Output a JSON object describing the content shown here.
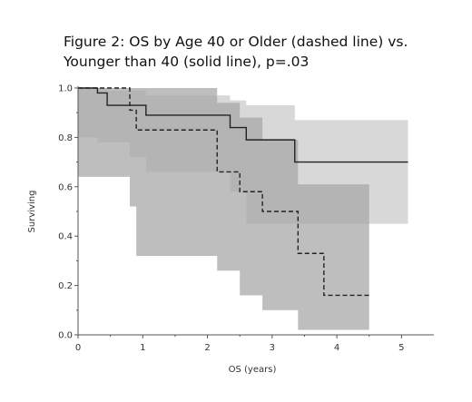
{
  "title": {
    "line1": "Figure 2: OS by Age 40 or Older (dashed line) vs.",
    "line2": "Younger than 40 (solid line), p=.03"
  },
  "chart_data": {
    "type": "line",
    "step": true,
    "xlabel": "OS (years)",
    "ylabel": "Surviving",
    "xlim": [
      0,
      5.5
    ],
    "ylim": [
      0,
      1.0
    ],
    "x_ticks": [
      0,
      1,
      2,
      3,
      4,
      5
    ],
    "y_ticks": [
      0.0,
      0.2,
      0.4,
      0.6,
      0.8,
      1.0
    ],
    "y_tick_labels": [
      "0.0",
      "0.2",
      "0.4",
      "0.6",
      "0.8",
      "1.0"
    ],
    "grid": false,
    "series": [
      {
        "style": "solid",
        "color": "#222222",
        "x": [
          0,
          0.3,
          0.45,
          0.8,
          1.05,
          2.35,
          2.6,
          3.35,
          5.1
        ],
        "y": [
          1.0,
          0.98,
          0.93,
          0.93,
          0.89,
          0.84,
          0.79,
          0.7,
          0.7
        ],
        "ci_lower": [
          0.9,
          0.8,
          0.78,
          0.78,
          0.72,
          0.66,
          0.58,
          0.45,
          0.45
        ],
        "ci_upper": [
          1.0,
          1.0,
          0.99,
          0.99,
          0.97,
          0.95,
          0.93,
          0.87,
          0.87
        ],
        "ci_color": "#d8d8d8"
      },
      {
        "style": "dashed",
        "color": "#222222",
        "x": [
          0,
          0.8,
          0.9,
          2.15,
          2.5,
          2.85,
          3.4,
          3.8,
          4.5
        ],
        "y": [
          1.0,
          0.91,
          0.83,
          0.66,
          0.58,
          0.5,
          0.33,
          0.16,
          0.16
        ],
        "ci_lower": [
          0.96,
          0.64,
          0.52,
          0.32,
          0.26,
          0.16,
          0.1,
          0.02,
          0.02
        ],
        "ci_upper": [
          1.0,
          1.0,
          1.0,
          0.94,
          0.88,
          0.79,
          0.61,
          0.61,
          0.61
        ],
        "ci_color": "#a8a8a8"
      }
    ]
  }
}
